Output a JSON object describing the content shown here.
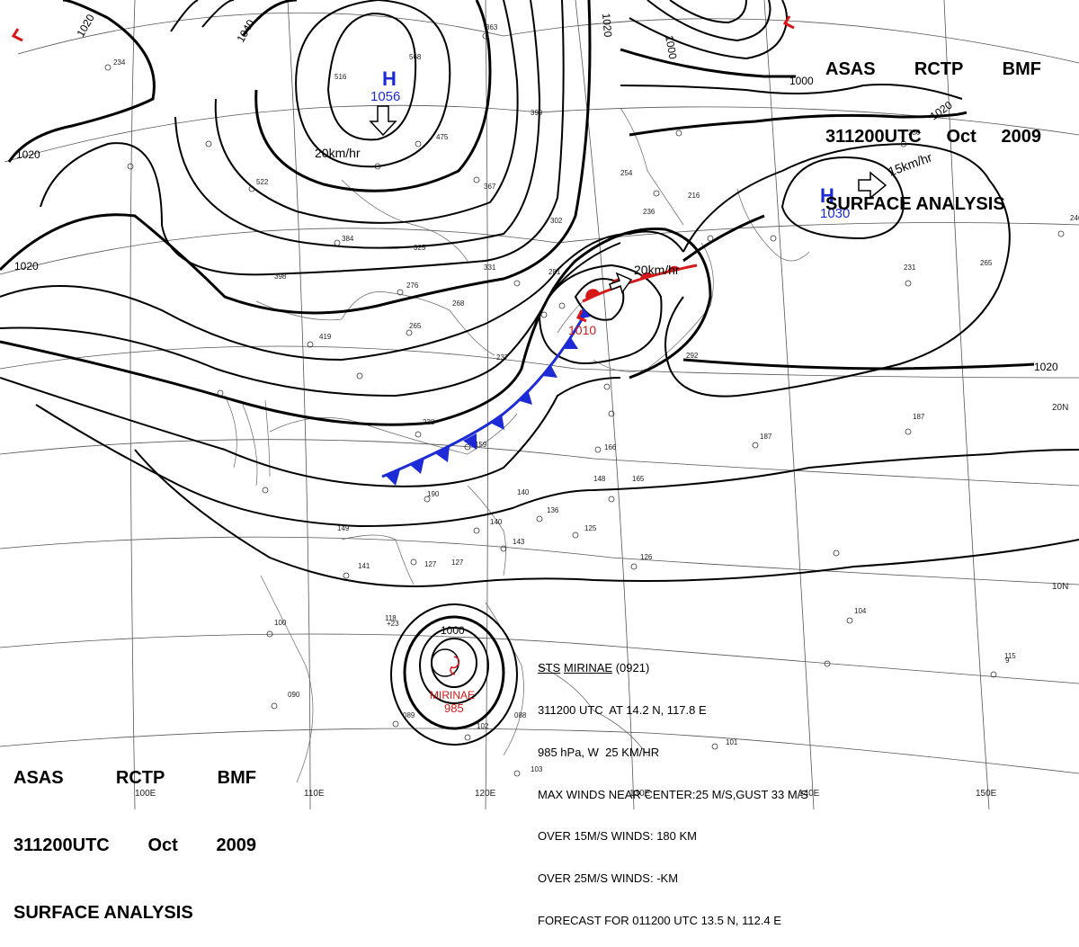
{
  "header_top": {
    "line1": [
      "ASAS",
      "RCTP",
      "BMF"
    ],
    "line2": [
      "311200UTC",
      "Oct",
      "2009"
    ],
    "line3": "SURFACE ANALYSIS"
  },
  "header_bottom": {
    "line1": [
      "ASAS",
      "RCTP",
      "BMF"
    ],
    "line2": [
      "311200UTC",
      "Oct",
      "2009"
    ],
    "line3": "SURFACE ANALYSIS"
  },
  "pressure_centers": [
    {
      "type": "H",
      "value": "1056",
      "motion": "20km/hr"
    },
    {
      "type": "H",
      "value": "1030",
      "motion": "15km/hr"
    },
    {
      "type": "L",
      "value": "1010",
      "motion": "20km/hr"
    },
    {
      "type": "TS",
      "value": "985",
      "name": "MIRINAE"
    }
  ],
  "isobar_labels": [
    "1020",
    "1040",
    "1020",
    "1020",
    "1000",
    "1020",
    "1000",
    "1020",
    "1020",
    "1000"
  ],
  "longitude_labels": [
    "100E",
    "110E",
    "120E",
    "130E",
    "140E",
    "150E"
  ],
  "latitude_labels": [
    "20N",
    "10N"
  ],
  "storm_info": {
    "line1_a": "STS",
    "line1_b": "MIRINAE",
    "line1_c": "(0921)",
    "line2": "311200 UTC  AT 14.2 N, 117.8 E",
    "line3": "985 hPa, W  25 KM/HR",
    "line4": "MAX WINDS NEAR CENTER:25 M/S,GUST 33 M/S",
    "line5": "OVER 15M/S WINDS: 180 KM",
    "line6": "OVER 25M/S WINDS: -KM",
    "line7": "FORECAST FOR 011200 UTC 13.5 N, 112.4 E"
  },
  "colors": {
    "cold_front": "#1d2bd6",
    "warm_front": "#d81818",
    "high_label": "#1d2bd6",
    "low_label": "#d81818"
  }
}
